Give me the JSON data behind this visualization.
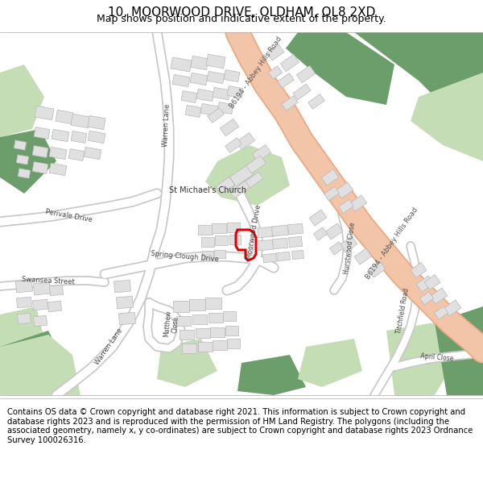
{
  "title_line1": "10, MOORWOOD DRIVE, OLDHAM, OL8 2XD",
  "title_line2": "Map shows position and indicative extent of the property.",
  "footer_text": "Contains OS data © Crown copyright and database right 2021. This information is subject to Crown copyright and database rights 2023 and is reproduced with the permission of HM Land Registry. The polygons (including the associated geometry, namely x, y co-ordinates) are subject to Crown copyright and database rights 2023 Ordnance Survey 100026316.",
  "map_bg": "#f5f5f0",
  "road_color_main": "#f2c4a8",
  "road_outline_main": "#e8a882",
  "road_color_white": "#ffffff",
  "road_outline_grey": "#c8c8c8",
  "green_dark": "#6b9e6b",
  "green_light": "#c5ddb5",
  "building_color": "#e0e0e0",
  "building_outline": "#b8b8b8",
  "plot_color": "#dd0000",
  "title_fontsize": 11,
  "subtitle_fontsize": 9,
  "footer_fontsize": 7.2,
  "title_font": "DejaVu Sans",
  "map_text_color": "#444444",
  "map_text_size": 6.5
}
